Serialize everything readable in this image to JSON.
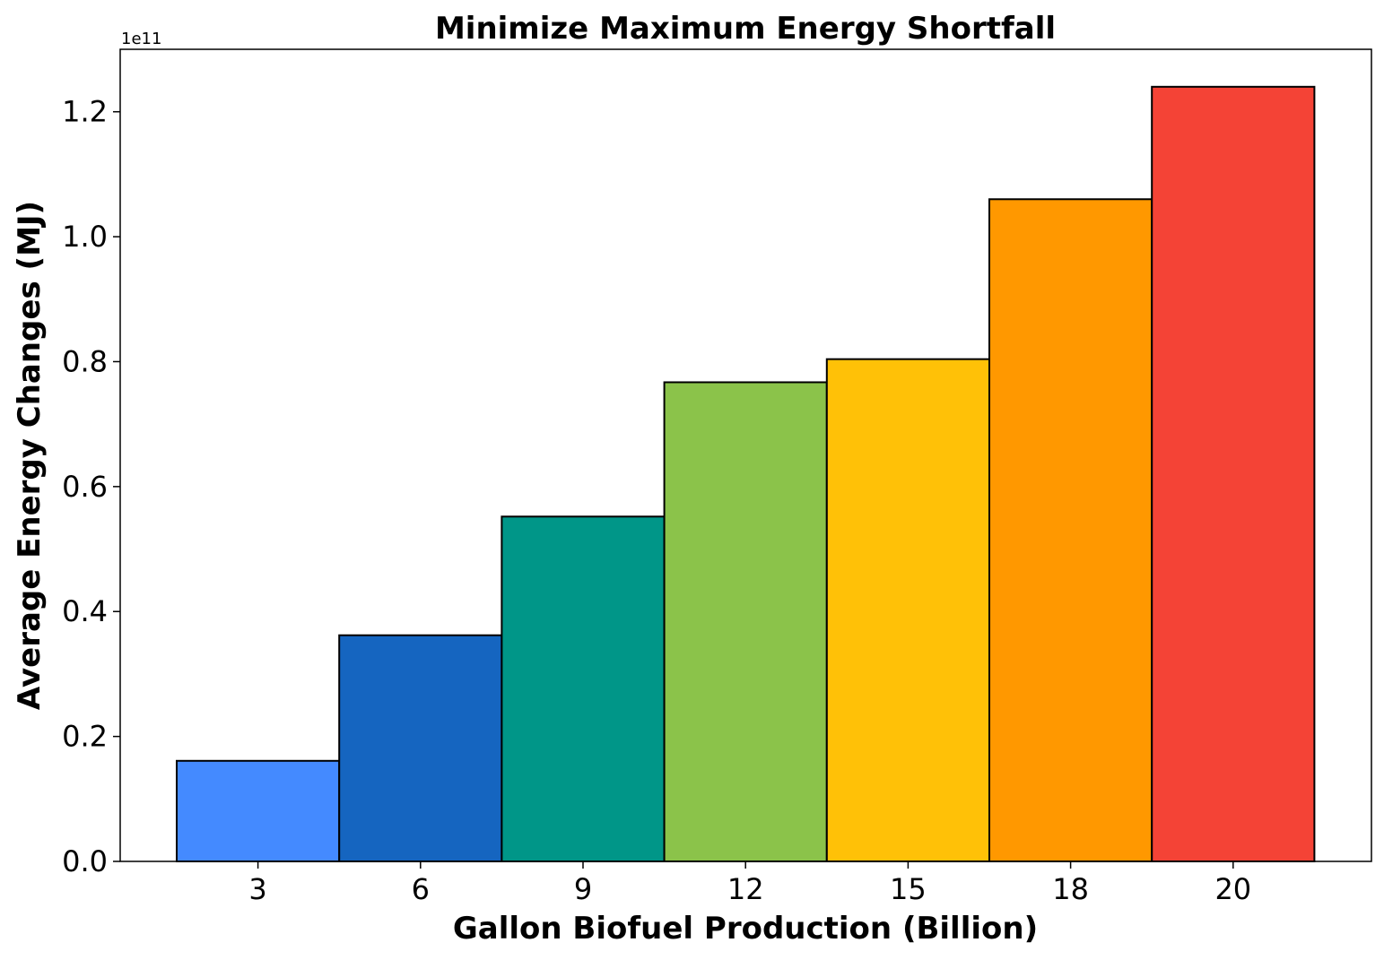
{
  "chart_data": {
    "type": "bar",
    "title": "Minimize Maximum Energy Shortfall",
    "xlabel": "Gallon Biofuel Production (Billion)",
    "ylabel": "Average Energy Changes (MJ)",
    "y_offset_label": "1e11",
    "categories": [
      "3",
      "6",
      "9",
      "12",
      "15",
      "18",
      "20"
    ],
    "values": [
      16100000000,
      36200000000,
      55200000000,
      76700000000,
      80400000000,
      106000000000,
      124000000000
    ],
    "colors": [
      "#448aff",
      "#1565c0",
      "#009688",
      "#8bc34a",
      "#ffc107",
      "#ff9800",
      "#f44336"
    ],
    "ylim": [
      0,
      130000000000
    ],
    "yticks": [
      0,
      20000000000,
      40000000000,
      60000000000,
      80000000000,
      100000000000,
      120000000000
    ],
    "ytick_labels": [
      "0.0",
      "0.2",
      "0.4",
      "0.6",
      "0.8",
      "1.0",
      "1.2"
    ],
    "grid": false,
    "legend": "none",
    "edge_color": "#000000"
  }
}
